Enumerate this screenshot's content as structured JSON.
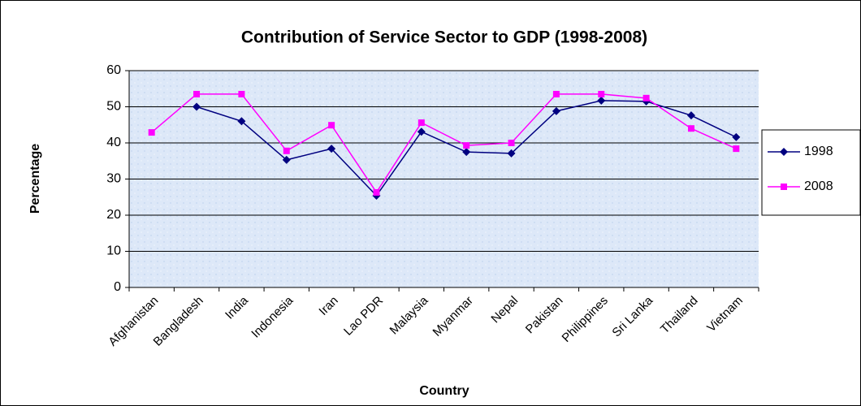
{
  "chart_data": {
    "type": "line",
    "title": "Contribution of Service Sector to  GDP (1998-2008)",
    "x_label": "Country",
    "y_label": "Percentage",
    "categories": [
      "Afghanistan",
      "Bangladesh",
      "India",
      "Indonesia",
      "Iran",
      "Lao PDR",
      "Malaysia",
      "Myanmar",
      "Nepal",
      "Pakistan",
      "Philippines",
      "Sri Lanka",
      "Thailand",
      "Vietnam"
    ],
    "series": [
      {
        "name": "1998",
        "color": "#000080",
        "marker": "diamond",
        "values": [
          null,
          50,
          46,
          35.3,
          38.4,
          25.4,
          43.1,
          37.5,
          37.1,
          48.8,
          51.7,
          51.5,
          47.6,
          41.6
        ]
      },
      {
        "name": "2008",
        "color": "#ff00ff",
        "marker": "square",
        "values": [
          42.9,
          53.5,
          53.5,
          37.8,
          44.9,
          26.3,
          45.6,
          39.3,
          40,
          53.5,
          53.5,
          52.4,
          44,
          38.4
        ]
      }
    ],
    "ylim": [
      0,
      60
    ],
    "yticks": [
      0,
      10,
      20,
      30,
      40,
      50,
      60
    ],
    "grid": true,
    "legend": "right"
  }
}
